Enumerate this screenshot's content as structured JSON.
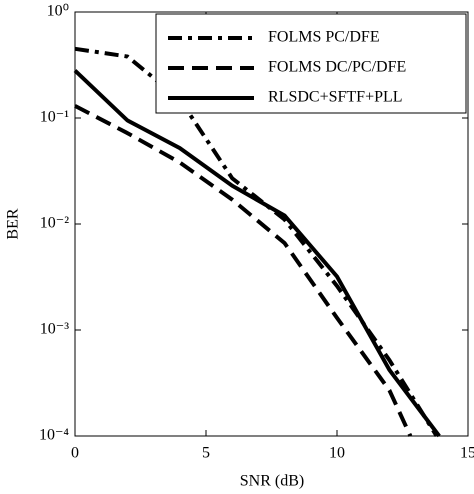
{
  "chart_data": {
    "type": "line",
    "x_label": "SNR (dB)",
    "y_label": "BER",
    "yscale": "log",
    "xlim": [
      0,
      15
    ],
    "xticks": [
      0,
      5,
      10,
      15
    ],
    "ylim": [
      0.0001,
      1
    ],
    "yticks": [
      {
        "value": 1,
        "label": "10⁰"
      },
      {
        "value": 0.1,
        "label": "10⁻¹"
      },
      {
        "value": 0.01,
        "label": "10⁻²"
      },
      {
        "value": 0.001,
        "label": "10⁻³"
      },
      {
        "value": 0.0001,
        "label": "10⁻⁴"
      }
    ],
    "legend": "upper right",
    "series": [
      {
        "name": "FOLMS PC/DFE",
        "color": "#000000",
        "linestyle": "dashdot",
        "x": [
          0,
          2,
          4,
          6,
          8,
          10,
          12,
          13.8
        ],
        "values": [
          0.45,
          0.38,
          0.15,
          0.027,
          0.011,
          0.0026,
          0.00052,
          0.0001
        ]
      },
      {
        "name": "FOLMS DC/PC/DFE",
        "color": "#000000",
        "linestyle": "dashed",
        "x": [
          0,
          2,
          4,
          6,
          8,
          10,
          12,
          12.8
        ],
        "values": [
          0.13,
          0.072,
          0.038,
          0.017,
          0.0066,
          0.0013,
          0.00027,
          0.0001
        ]
      },
      {
        "name": "RLSDC+SFTF+PLL",
        "color": "#000000",
        "linestyle": "solid",
        "x": [
          0,
          2,
          4,
          6,
          8,
          10,
          12,
          13.9
        ],
        "values": [
          0.28,
          0.095,
          0.052,
          0.023,
          0.012,
          0.0032,
          0.00042,
          0.0001
        ]
      }
    ]
  }
}
